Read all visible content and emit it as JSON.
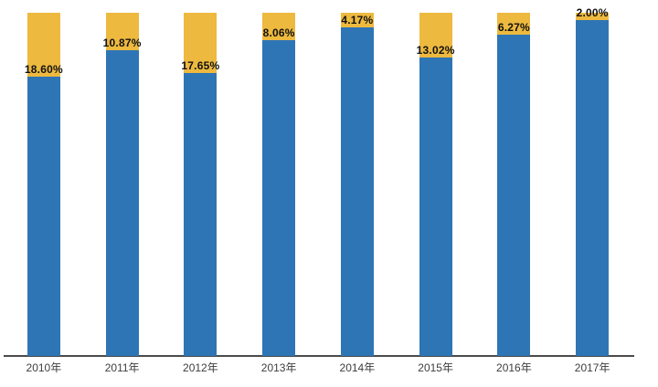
{
  "chart_data": {
    "type": "bar",
    "stacked": true,
    "title": "",
    "xlabel": "",
    "ylabel": "",
    "ylim": [
      0,
      100
    ],
    "grid": false,
    "legend": "none",
    "categories": [
      "2010年",
      "2011年",
      "2012年",
      "2013年",
      "2014年",
      "2015年",
      "2016年",
      "2017年"
    ],
    "series": [
      {
        "name": "lower-segment",
        "color": "#2E75B5",
        "values": [
          81.4,
          89.13,
          82.35,
          91.94,
          95.83,
          86.98,
          93.73,
          98.0
        ]
      },
      {
        "name": "upper-segment",
        "color": "#EDB93F",
        "values": [
          18.6,
          10.87,
          17.65,
          8.06,
          4.17,
          13.02,
          6.27,
          2.0
        ]
      }
    ],
    "data_labels": [
      "18.60%",
      "10.87%",
      "17.65%",
      "8.06%",
      "4.17%",
      "13.02%",
      "6.27%",
      "2.00%"
    ],
    "colors": {
      "bar_blue": "#2E75B5",
      "bar_amber": "#EDB93F",
      "axis_line": "#4a4a4a",
      "data_label": "#111111",
      "tick_label": "#3d3d3d",
      "background": "#ffffff"
    }
  }
}
